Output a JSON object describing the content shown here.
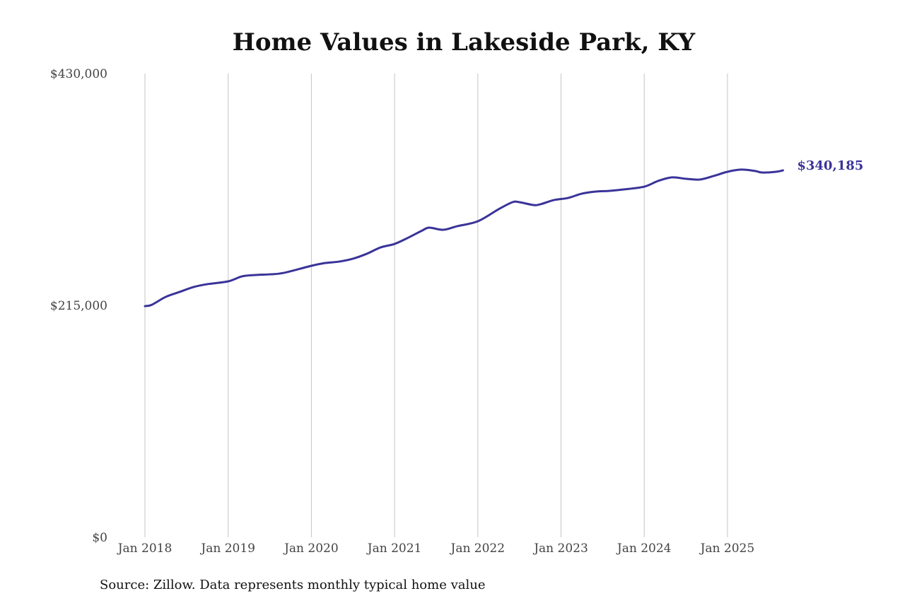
{
  "chart_data": {
    "type": "line",
    "title": "Home Values in Lakeside Park, KY",
    "xlabel": "",
    "ylabel": "",
    "ylim": [
      0,
      430000
    ],
    "y_ticks": [
      0,
      215000,
      430000
    ],
    "y_tick_labels": [
      "$0",
      "$215,000",
      "$430,000"
    ],
    "x_ticks": [
      "2018-01",
      "2019-01",
      "2020-01",
      "2021-01",
      "2022-01",
      "2023-01",
      "2024-01",
      "2025-01"
    ],
    "x_tick_labels": [
      "Jan 2018",
      "Jan 2019",
      "Jan 2020",
      "Jan 2021",
      "Jan 2022",
      "Jan 2023",
      "Jan 2024",
      "Jan 2025"
    ],
    "grid": "vertical",
    "line_color": "#3a3399",
    "end_label": "$340,185",
    "series": [
      {
        "x": [
          "2018-01",
          "2018-02",
          "2018-04",
          "2018-06",
          "2018-08",
          "2018-10",
          "2019-01",
          "2019-03",
          "2019-05",
          "2019-07",
          "2019-09",
          "2020-01",
          "2020-03",
          "2020-05",
          "2020-07",
          "2020-09",
          "2020-11",
          "2021-01",
          "2021-03",
          "2021-05",
          "2021-06",
          "2021-08",
          "2021-10",
          "2022-01",
          "2022-04",
          "2022-06",
          "2022-07",
          "2022-09",
          "2022-10",
          "2022-12",
          "2023-02",
          "2023-04",
          "2023-06",
          "2023-08",
          "2023-10",
          "2024-01",
          "2024-03",
          "2024-05",
          "2024-07",
          "2024-09",
          "2024-11",
          "2025-01",
          "2025-03",
          "2025-05",
          "2025-06",
          "2025-08",
          "2025-09"
        ],
        "values": [
          214300,
          215600,
          222900,
          227500,
          232000,
          234700,
          237300,
          241900,
          243200,
          243800,
          245100,
          251700,
          254300,
          255600,
          258300,
          262900,
          268800,
          272000,
          277900,
          284500,
          287100,
          285100,
          288400,
          293000,
          304200,
          310700,
          310700,
          308100,
          308700,
          312700,
          314600,
          318600,
          320500,
          321200,
          322500,
          325100,
          330400,
          333700,
          332400,
          331700,
          335000,
          338900,
          340900,
          339600,
          338200,
          338900,
          340185
        ]
      }
    ]
  },
  "source": "Source: Zillow. Data represents monthly typical home value"
}
